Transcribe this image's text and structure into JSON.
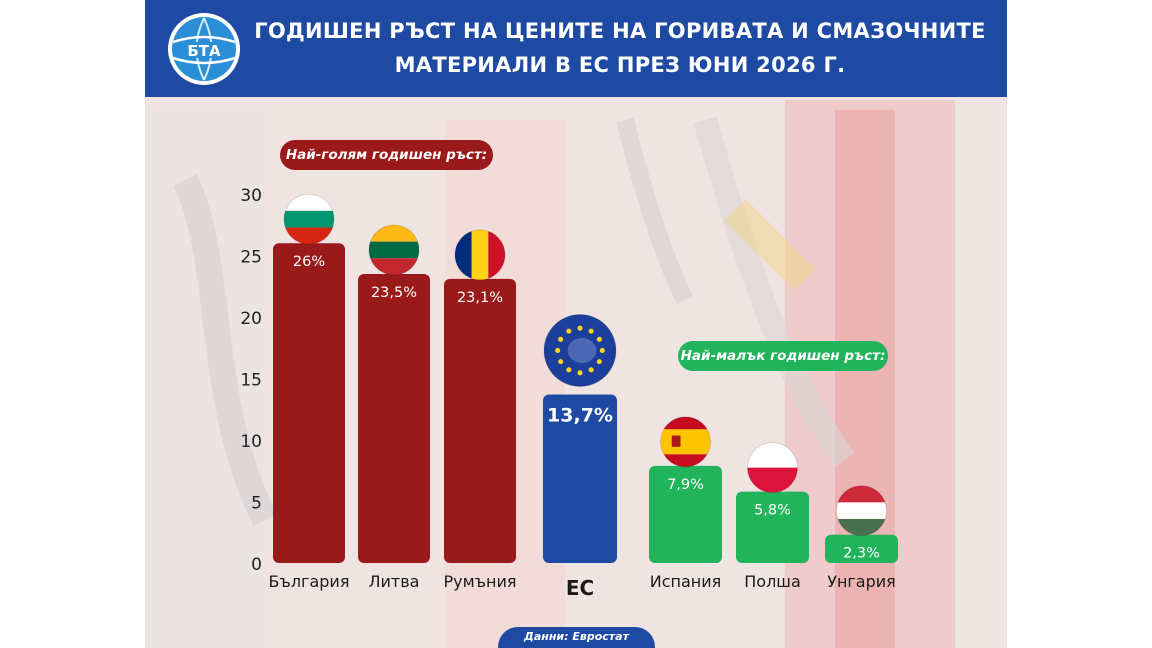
{
  "header": {
    "title_line1": "ГОДИШЕН РЪСТ НА ЦЕНИТЕ НА ГОРИВАТА И СМАЗОЧНИТЕ",
    "title_line2": "МАТЕРИАЛИ В ЕС ПРЕЗ ЮНИ 2026 Г.",
    "logo_text": "БТА",
    "color": "#1f4aa4"
  },
  "labels": {
    "highest": "Най-голям годишен ръст:",
    "lowest": "Най-малък годишен ръст:",
    "source": "Данни: Евростат"
  },
  "colors": {
    "highest": "#9a1a1b",
    "eu": "#1f4aa4",
    "lowest": "#21b45b"
  },
  "chart_data": {
    "type": "bar",
    "categories": [
      "България",
      "Литва",
      "Румъния",
      "ЕС",
      "Испания",
      "Полша",
      "Унгария"
    ],
    "values": [
      26,
      23.5,
      23.1,
      13.7,
      7.9,
      5.8,
      2.3
    ],
    "value_labels": [
      "26%",
      "23,5%",
      "23,1%",
      "13,7%",
      "7,9%",
      "5,8%",
      "2,3%"
    ],
    "groups": [
      "highest",
      "highest",
      "highest",
      "eu",
      "lowest",
      "lowest",
      "lowest"
    ],
    "flags": [
      "bulgaria-flag-icon",
      "lithuania-flag-icon",
      "romania-flag-icon",
      "eu-flag-icon",
      "spain-flag-icon",
      "poland-flag-icon",
      "hungary-flag-icon"
    ],
    "ylim": [
      0,
      30
    ],
    "yticks": [
      0,
      5,
      10,
      15,
      20,
      25,
      30
    ],
    "xlabel": "",
    "ylabel": "",
    "grid": false
  }
}
